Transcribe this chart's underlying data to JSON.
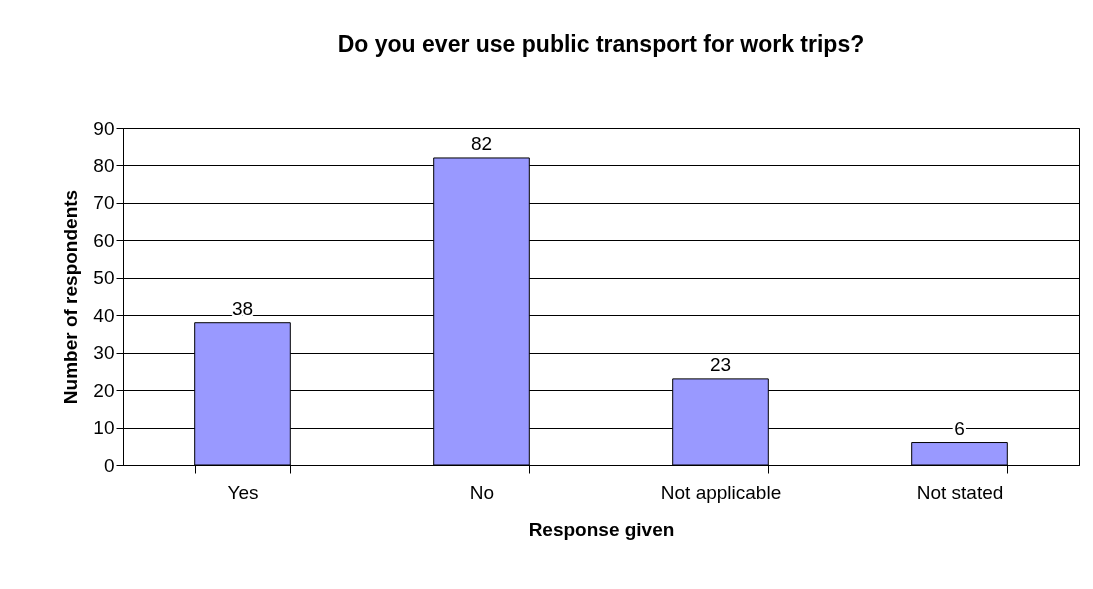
{
  "chart_data": {
    "type": "bar",
    "title": "Do you ever use public transport for work trips?",
    "xlabel": "Response given",
    "ylabel": "Number of respondents",
    "categories": [
      "Yes",
      "No",
      "Not applicable",
      "Not stated"
    ],
    "values": [
      38,
      82,
      23,
      6
    ],
    "color": "#9999ff",
    "ylim": [
      0,
      90
    ],
    "yticks": [
      0,
      10,
      20,
      30,
      40,
      50,
      60,
      70,
      80,
      90
    ],
    "grid": "y",
    "data_labels": true
  }
}
